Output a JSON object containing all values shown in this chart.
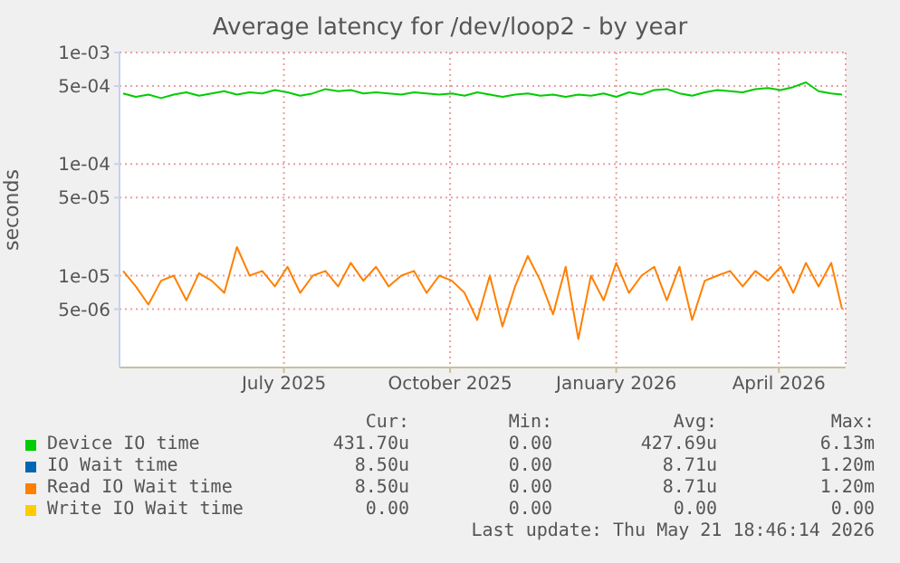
{
  "chart_data": {
    "type": "line",
    "title": "Average latency for /dev/loop2 - by year",
    "ylabel": "seconds",
    "log": "y",
    "grid": true,
    "legend": "bottom",
    "xlim": [
      "2025-04-01",
      "2026-05-08"
    ],
    "xticks": [
      {
        "value": "2025-07-01",
        "label": "July 2025"
      },
      {
        "value": "2025-10-01",
        "label": "October 2025"
      },
      {
        "value": "2026-01-01",
        "label": "January 2026"
      },
      {
        "value": "2026-04-01",
        "label": "April 2026"
      }
    ],
    "ylim": [
      1.5e-06,
      0.001
    ],
    "yticks": [
      {
        "value": 0.001,
        "label": "1e-03"
      },
      {
        "value": 0.0005,
        "label": "5e-04"
      },
      {
        "value": 0.0001,
        "label": "1e-04"
      },
      {
        "value": 5e-05,
        "label": "5e-05"
      },
      {
        "value": 1e-05,
        "label": "1e-05"
      },
      {
        "value": 5e-06,
        "label": "5e-06"
      }
    ],
    "x": [
      "2025-04-03",
      "2025-04-10",
      "2025-04-17",
      "2025-04-24",
      "2025-05-01",
      "2025-05-08",
      "2025-05-15",
      "2025-05-22",
      "2025-05-29",
      "2025-06-05",
      "2025-06-12",
      "2025-06-19",
      "2025-06-26",
      "2025-07-03",
      "2025-07-10",
      "2025-07-17",
      "2025-07-24",
      "2025-07-31",
      "2025-08-07",
      "2025-08-14",
      "2025-08-21",
      "2025-08-28",
      "2025-09-04",
      "2025-09-11",
      "2025-09-18",
      "2025-09-25",
      "2025-10-02",
      "2025-10-09",
      "2025-10-16",
      "2025-10-23",
      "2025-10-30",
      "2025-11-06",
      "2025-11-13",
      "2025-11-20",
      "2025-11-27",
      "2025-12-04",
      "2025-12-11",
      "2025-12-18",
      "2025-12-25",
      "2026-01-01",
      "2026-01-08",
      "2026-01-15",
      "2026-01-22",
      "2026-01-29",
      "2026-02-05",
      "2026-02-12",
      "2026-02-19",
      "2026-02-26",
      "2026-03-05",
      "2026-03-12",
      "2026-03-19",
      "2026-03-26",
      "2026-04-02",
      "2026-04-09",
      "2026-04-16",
      "2026-04-23",
      "2026-04-30",
      "2026-05-06"
    ],
    "series": [
      {
        "name": "Device IO time",
        "color": "#00cc00",
        "values": [
          0.00043,
          0.0004,
          0.00042,
          0.00039,
          0.00042,
          0.00044,
          0.00041,
          0.00043,
          0.00045,
          0.00042,
          0.00044,
          0.00043,
          0.00046,
          0.00044,
          0.00041,
          0.00043,
          0.00047,
          0.00045,
          0.00046,
          0.00043,
          0.00044,
          0.00043,
          0.00042,
          0.00044,
          0.00043,
          0.00042,
          0.00043,
          0.00041,
          0.00044,
          0.00042,
          0.0004,
          0.00042,
          0.00043,
          0.00041,
          0.00042,
          0.0004,
          0.00042,
          0.00041,
          0.00043,
          0.0004,
          0.00044,
          0.00042,
          0.00046,
          0.00047,
          0.00043,
          0.00041,
          0.00044,
          0.00046,
          0.00045,
          0.00044,
          0.00047,
          0.00048,
          0.00046,
          0.00049,
          0.00054,
          0.00045,
          0.00043,
          0.00042
        ]
      },
      {
        "name": "IO Wait time",
        "color": "#0066b3",
        "values": [
          null,
          null,
          null,
          null,
          null,
          null,
          null,
          null,
          null,
          null,
          null,
          null,
          null,
          null,
          null,
          null,
          null,
          null,
          null,
          null,
          null,
          null,
          null,
          null,
          null,
          null,
          null,
          null,
          null,
          null,
          null,
          null,
          null,
          null,
          null,
          null,
          null,
          null,
          null,
          null,
          null,
          null,
          null,
          null,
          null,
          null,
          null,
          null,
          null,
          null,
          null,
          null,
          null,
          null,
          null,
          null,
          null,
          null
        ]
      },
      {
        "name": "Read IO Wait time",
        "color": "#ff8000",
        "values": [
          1.1e-05,
          8e-06,
          5.5e-06,
          9e-06,
          1e-05,
          6e-06,
          1.05e-05,
          9e-06,
          7e-06,
          1.8e-05,
          1e-05,
          1.1e-05,
          8e-06,
          1.2e-05,
          7e-06,
          1e-05,
          1.1e-05,
          8e-06,
          1.3e-05,
          9e-06,
          1.2e-05,
          8e-06,
          1e-05,
          1.1e-05,
          7e-06,
          1e-05,
          9e-06,
          7e-06,
          4e-06,
          1e-05,
          3.5e-06,
          8e-06,
          1.5e-05,
          9e-06,
          4.5e-06,
          1.2e-05,
          2.7e-06,
          1e-05,
          6e-06,
          1.3e-05,
          7e-06,
          1e-05,
          1.2e-05,
          6e-06,
          1.2e-05,
          4e-06,
          9e-06,
          1e-05,
          1.1e-05,
          8e-06,
          1.1e-05,
          9e-06,
          1.2e-05,
          7e-06,
          1.3e-05,
          8e-06,
          1.3e-05,
          5e-06
        ]
      },
      {
        "name": "Write IO Wait time",
        "color": "#ffcc00",
        "values": [
          null,
          null,
          null,
          null,
          null,
          null,
          null,
          null,
          null,
          null,
          null,
          null,
          null,
          null,
          null,
          null,
          null,
          null,
          null,
          null,
          null,
          null,
          null,
          null,
          null,
          null,
          null,
          null,
          null,
          null,
          null,
          null,
          null,
          null,
          null,
          null,
          null,
          null,
          null,
          null,
          null,
          null,
          null,
          null,
          null,
          null,
          null,
          null,
          null,
          null,
          null,
          null,
          null,
          null,
          null,
          null,
          null,
          null
        ]
      }
    ],
    "annotations": [
      "Cur:",
      "Min:",
      "Avg:",
      "Max:",
      "431.70u",
      "0.00",
      "427.69u",
      "6.13m",
      "8.50u",
      "0.00",
      "8.71u",
      "1.20m",
      "8.50u",
      "0.00",
      "8.71u",
      "1.20m",
      "0.00",
      "0.00",
      "0.00",
      "0.00",
      "Last update: Thu May 21 18:46:14 2026"
    ]
  }
}
